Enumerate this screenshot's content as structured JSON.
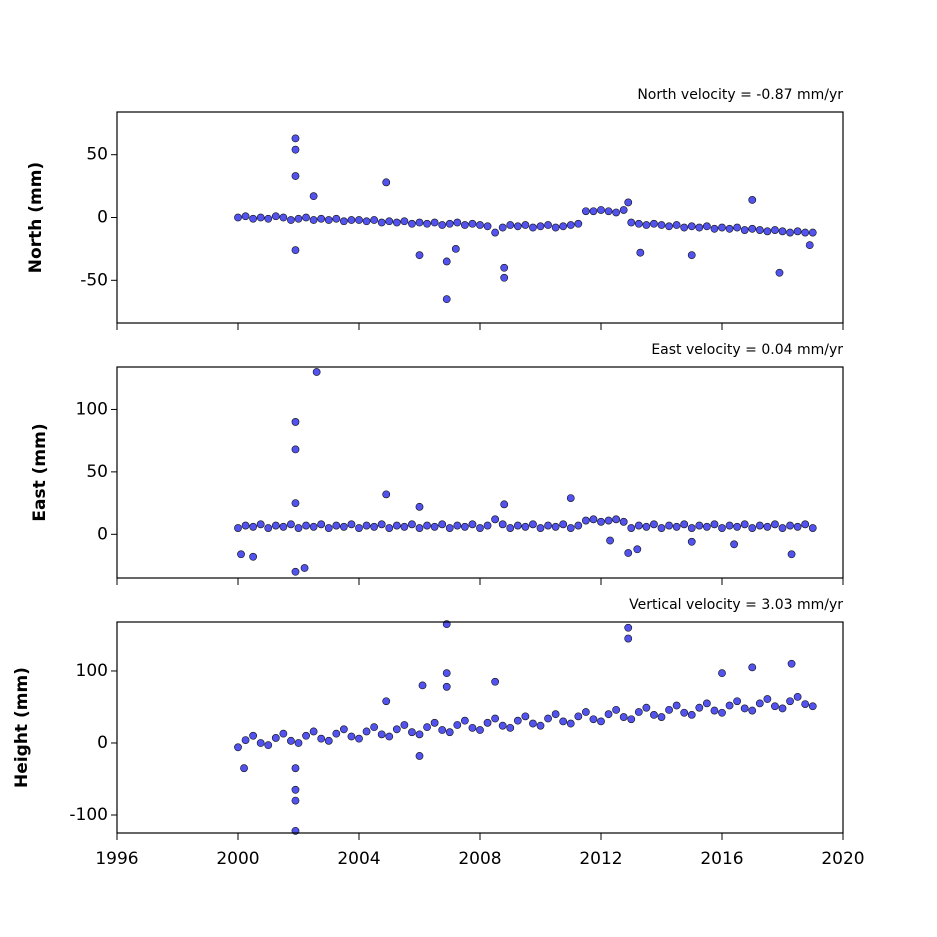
{
  "chart_data": [
    {
      "type": "scatter",
      "title": "North velocity = -0.87 mm/yr",
      "ylabel": "North (mm)",
      "color": "#5252ee",
      "xlim": [
        1996,
        2020
      ],
      "xticks": [
        1996,
        2000,
        2004,
        2008,
        2012,
        2016,
        2020
      ],
      "ylim": [
        -84,
        84
      ],
      "yticks": [
        -50,
        0,
        50
      ],
      "x": [
        2000,
        2000.25,
        2000.5,
        2000.75,
        2001,
        2001.25,
        2001.5,
        2001.75,
        2002,
        2002.25,
        2002.5,
        2002.75,
        2003,
        2003.25,
        2003.5,
        2003.75,
        2004,
        2004.25,
        2004.5,
        2004.75,
        2005,
        2005.25,
        2005.5,
        2005.75,
        2006,
        2006.25,
        2006.5,
        2006.75,
        2007,
        2007.25,
        2007.5,
        2007.75,
        2008,
        2008.25,
        2008.5,
        2008.75,
        2009,
        2009.25,
        2009.5,
        2009.75,
        2010,
        2010.25,
        2010.5,
        2010.75,
        2011,
        2011.25,
        2011.5,
        2011.75,
        2012,
        2012.25,
        2012.5,
        2012.75,
        2013,
        2013.25,
        2013.5,
        2013.75,
        2014,
        2014.25,
        2014.5,
        2014.75,
        2015,
        2015.25,
        2015.5,
        2015.75,
        2016,
        2016.25,
        2016.5,
        2016.75,
        2017,
        2017.25,
        2017.5,
        2017.75,
        2018,
        2018.25,
        2018.5,
        2018.75,
        2019,
        2001.9,
        2001.9,
        2001.9,
        2001.9,
        2002.5,
        2004.9,
        2006,
        2006.9,
        2006.9,
        2007.2,
        2008.8,
        2008.8,
        2012.9,
        2013.3,
        2015,
        2017,
        2017.9,
        2018.9
      ],
      "values": [
        0,
        1,
        -1,
        0,
        -1,
        1,
        0,
        -2,
        -1,
        0,
        -2,
        -1,
        -2,
        -1,
        -3,
        -2,
        -2,
        -3,
        -2,
        -4,
        -3,
        -4,
        -3,
        -5,
        -4,
        -5,
        -4,
        -6,
        -5,
        -4,
        -6,
        -5,
        -6,
        -7,
        -12,
        -8,
        -6,
        -7,
        -6,
        -8,
        -7,
        -6,
        -8,
        -7,
        -6,
        -5,
        5,
        5,
        6,
        5,
        4,
        6,
        -4,
        -5,
        -6,
        -5,
        -6,
        -7,
        -6,
        -8,
        -7,
        -8,
        -7,
        -9,
        -8,
        -9,
        -8,
        -10,
        -9,
        -10,
        -11,
        -10,
        -11,
        -12,
        -11,
        -12,
        -12,
        63,
        54,
        33,
        -26,
        17,
        28,
        -30,
        -65,
        -35,
        -25,
        -48,
        -40,
        12,
        -28,
        -30,
        14,
        -44,
        -22
      ]
    },
    {
      "type": "scatter",
      "title": "East velocity = 0.04 mm/yr",
      "ylabel": "East (mm)",
      "color": "#5252ee",
      "xlim": [
        1996,
        2020
      ],
      "xticks": [
        1996,
        2000,
        2004,
        2008,
        2012,
        2016,
        2020
      ],
      "ylim": [
        -35,
        134
      ],
      "yticks": [
        0,
        50,
        100
      ],
      "x": [
        2000,
        2000.25,
        2000.5,
        2000.75,
        2001,
        2001.25,
        2001.5,
        2001.75,
        2002,
        2002.25,
        2002.5,
        2002.75,
        2003,
        2003.25,
        2003.5,
        2003.75,
        2004,
        2004.25,
        2004.5,
        2004.75,
        2005,
        2005.25,
        2005.5,
        2005.75,
        2006,
        2006.25,
        2006.5,
        2006.75,
        2007,
        2007.25,
        2007.5,
        2007.75,
        2008,
        2008.25,
        2008.5,
        2008.75,
        2009,
        2009.25,
        2009.5,
        2009.75,
        2010,
        2010.25,
        2010.5,
        2010.75,
        2011,
        2011.25,
        2011.5,
        2011.75,
        2012,
        2012.25,
        2012.5,
        2012.75,
        2013,
        2013.25,
        2013.5,
        2013.75,
        2014,
        2014.25,
        2014.5,
        2014.75,
        2015,
        2015.25,
        2015.5,
        2015.75,
        2016,
        2016.25,
        2016.5,
        2016.75,
        2017,
        2017.25,
        2017.5,
        2017.75,
        2018,
        2018.25,
        2018.5,
        2018.75,
        2019,
        2000.1,
        2000.5,
        2001.9,
        2001.9,
        2001.9,
        2001.9,
        2002.2,
        2002.6,
        2004.9,
        2006,
        2008.8,
        2011,
        2012.9,
        2013.2,
        2016.4,
        2018.3,
        2012.3,
        2015
      ],
      "values": [
        5,
        7,
        6,
        8,
        5,
        7,
        6,
        8,
        5,
        7,
        6,
        8,
        5,
        7,
        6,
        8,
        5,
        7,
        6,
        8,
        5,
        7,
        6,
        8,
        5,
        7,
        6,
        8,
        5,
        7,
        6,
        8,
        5,
        7,
        12,
        8,
        5,
        7,
        6,
        8,
        5,
        7,
        6,
        8,
        5,
        7,
        11,
        12,
        10,
        11,
        12,
        10,
        5,
        7,
        6,
        8,
        5,
        7,
        6,
        8,
        5,
        7,
        6,
        8,
        5,
        7,
        6,
        8,
        5,
        7,
        6,
        8,
        5,
        7,
        6,
        8,
        5,
        -16,
        -18,
        90,
        68,
        25,
        -30,
        -27,
        130,
        32,
        22,
        24,
        29,
        -15,
        -12,
        -8,
        -16,
        -5,
        -6
      ]
    },
    {
      "type": "scatter",
      "title": "Vertical velocity = 3.03 mm/yr",
      "ylabel": "Height (mm)",
      "color": "#5252ee",
      "xlim": [
        1996,
        2020
      ],
      "xticks": [
        1996,
        2000,
        2004,
        2008,
        2012,
        2016,
        2020
      ],
      "ylim": [
        -125,
        168
      ],
      "yticks": [
        -100,
        0,
        100
      ],
      "x": [
        2000,
        2000.25,
        2000.5,
        2000.75,
        2001,
        2001.25,
        2001.5,
        2001.75,
        2002,
        2002.25,
        2002.5,
        2002.75,
        2003,
        2003.25,
        2003.5,
        2003.75,
        2004,
        2004.25,
        2004.5,
        2004.75,
        2005,
        2005.25,
        2005.5,
        2005.75,
        2006,
        2006.25,
        2006.5,
        2006.75,
        2007,
        2007.25,
        2007.5,
        2007.75,
        2008,
        2008.25,
        2008.5,
        2008.75,
        2009,
        2009.25,
        2009.5,
        2009.75,
        2010,
        2010.25,
        2010.5,
        2010.75,
        2011,
        2011.25,
        2011.5,
        2011.75,
        2012,
        2012.25,
        2012.5,
        2012.75,
        2013,
        2013.25,
        2013.5,
        2013.75,
        2014,
        2014.25,
        2014.5,
        2014.75,
        2015,
        2015.25,
        2015.5,
        2015.75,
        2016,
        2016.25,
        2016.5,
        2016.75,
        2017,
        2017.25,
        2017.5,
        2017.75,
        2018,
        2018.25,
        2018.5,
        2018.75,
        2019,
        2000.2,
        2001.9,
        2001.9,
        2001.9,
        2001.9,
        2006.1,
        2006,
        2006.9,
        2006.9,
        2006.9,
        2008.5,
        2012.9,
        2012.9,
        2017,
        2018.3,
        2016,
        2004.9
      ],
      "values": [
        -6,
        4,
        10,
        0,
        -3,
        7,
        13,
        3,
        0,
        10,
        16,
        6,
        3,
        13,
        19,
        9,
        6,
        16,
        22,
        12,
        9,
        19,
        25,
        15,
        12,
        22,
        28,
        18,
        15,
        25,
        31,
        21,
        18,
        28,
        34,
        24,
        21,
        31,
        37,
        27,
        24,
        34,
        40,
        30,
        27,
        37,
        43,
        33,
        30,
        40,
        46,
        36,
        33,
        43,
        49,
        39,
        36,
        46,
        52,
        42,
        39,
        49,
        55,
        45,
        42,
        52,
        58,
        48,
        45,
        55,
        61,
        51,
        48,
        58,
        64,
        54,
        51,
        -35,
        -122,
        -80,
        -65,
        -35,
        80,
        -18,
        165,
        97,
        78,
        85,
        160,
        145,
        105,
        110,
        97,
        58
      ]
    }
  ]
}
